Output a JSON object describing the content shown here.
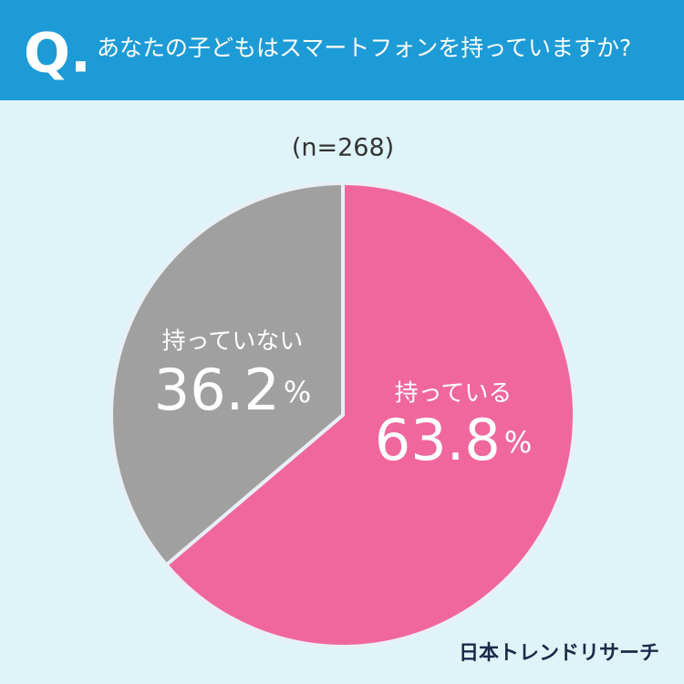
{
  "chart_data": {
    "type": "pie",
    "q_label": "Q.",
    "title": "あなたの子どもはスマートフォンを持っていますか?",
    "subtitle": "(n=268)",
    "categories": [
      "持っている",
      "持っていない"
    ],
    "values": [
      63.8,
      36.2
    ],
    "value_labels": [
      "63.8%",
      "36.2%"
    ],
    "colors": [
      "#f0679e",
      "#a0a0a0"
    ],
    "source": "日本トレンドリサーチ"
  }
}
